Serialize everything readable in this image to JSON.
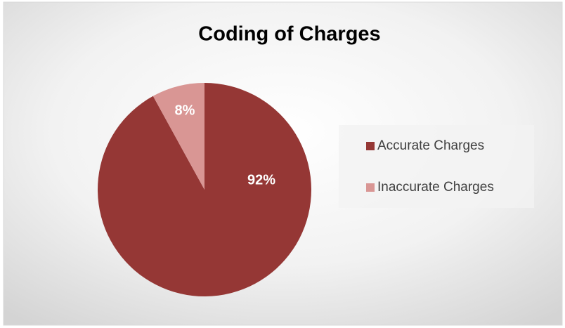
{
  "chart_data": {
    "type": "pie",
    "title": "Coding of Charges",
    "categories": [
      "Accurate Charges",
      "Inaccurate Charges"
    ],
    "values": [
      92,
      8
    ],
    "value_labels": [
      "92%",
      "8%"
    ],
    "colors": [
      "#953735",
      "#d99694"
    ],
    "legend": "right"
  }
}
